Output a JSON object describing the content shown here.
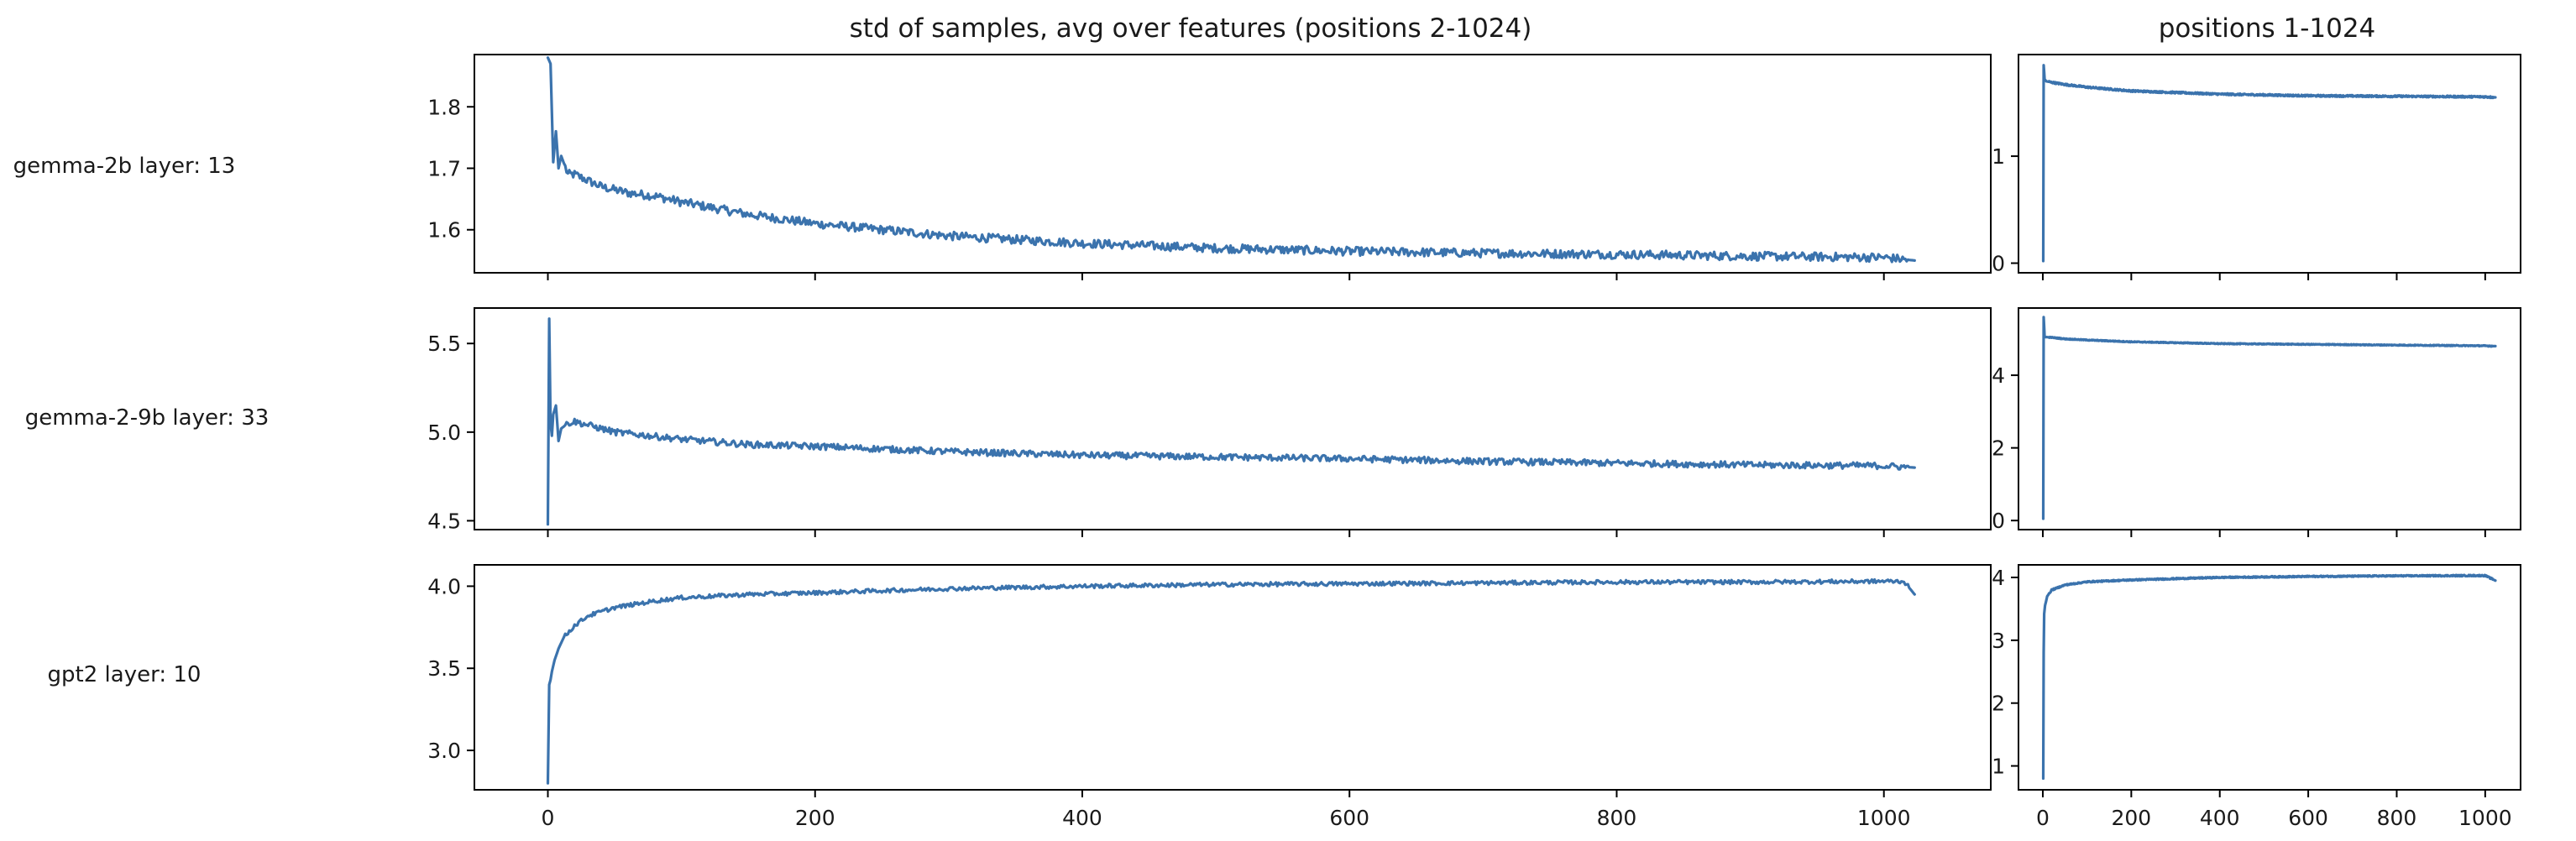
{
  "colors": {
    "line": "#3b73ad",
    "axes": "#000000"
  },
  "chart_data": {
    "type": "line",
    "grid": false,
    "column_titles": [
      "std of samples, avg over features (positions 2-1024)",
      "positions 1-1024"
    ],
    "row_labels": [
      "gemma-2b layer: 13",
      "gemma-2-9b layer: 33",
      "gpt2 layer: 10"
    ],
    "x_ticks_main": [
      0,
      200,
      400,
      600,
      800,
      1000
    ],
    "x_ticks_full": [
      0,
      200,
      400,
      600,
      800,
      1000
    ],
    "panels": [
      {
        "row": 0,
        "column": 0,
        "xlim": [
          -55,
          1080
        ],
        "ylim": [
          1.53,
          1.885
        ],
        "yticks": [
          "1.8",
          "1.7",
          "1.6"
        ],
        "ytick_values": [
          1.8,
          1.7,
          1.6
        ],
        "x": [
          0,
          2,
          4,
          6,
          8,
          10,
          15,
          20,
          30,
          40,
          50,
          60,
          80,
          100,
          150,
          200,
          250,
          300,
          400,
          500,
          600,
          700,
          800,
          900,
          1000,
          1023
        ],
        "y": [
          1.88,
          1.87,
          1.71,
          1.76,
          1.7,
          1.72,
          1.69,
          1.69,
          1.68,
          1.67,
          1.665,
          1.66,
          1.655,
          1.645,
          1.625,
          1.61,
          1.6,
          1.59,
          1.578,
          1.57,
          1.565,
          1.562,
          1.56,
          1.557,
          1.555,
          1.55
        ],
        "noise": 0.007
      },
      {
        "row": 0,
        "column": 1,
        "xlim": [
          -55,
          1080
        ],
        "ylim": [
          -0.09,
          1.95
        ],
        "yticks": [
          "1",
          "0"
        ],
        "ytick_values": [
          1,
          0
        ],
        "x": [
          1,
          2,
          4,
          8,
          20,
          50,
          100,
          200,
          400,
          600,
          800,
          1000,
          1023
        ],
        "y": [
          0.02,
          1.85,
          1.72,
          1.7,
          1.69,
          1.67,
          1.645,
          1.61,
          1.58,
          1.565,
          1.56,
          1.555,
          1.55
        ],
        "noise": 0.008
      },
      {
        "row": 1,
        "column": 0,
        "xlim": [
          -55,
          1080
        ],
        "ylim": [
          4.45,
          5.7
        ],
        "yticks": [
          "5.5",
          "5.0",
          "4.5"
        ],
        "ytick_values": [
          5.5,
          5.0,
          4.5
        ],
        "x": [
          0,
          1,
          2,
          3,
          4,
          6,
          8,
          10,
          15,
          20,
          30,
          50,
          100,
          150,
          200,
          300,
          400,
          500,
          600,
          700,
          800,
          900,
          1000,
          1023
        ],
        "y": [
          4.48,
          5.64,
          5.05,
          4.98,
          5.1,
          5.15,
          4.95,
          5.02,
          5.05,
          5.06,
          5.04,
          5.0,
          4.96,
          4.93,
          4.92,
          4.89,
          4.87,
          4.86,
          4.85,
          4.835,
          4.825,
          4.815,
          4.81,
          4.8
        ],
        "noise": 0.018
      },
      {
        "row": 1,
        "column": 1,
        "xlim": [
          -55,
          1080
        ],
        "ylim": [
          -0.25,
          5.85
        ],
        "yticks": [
          "4",
          "2",
          "0"
        ],
        "ytick_values": [
          4,
          2,
          0
        ],
        "x": [
          1,
          2,
          4,
          8,
          20,
          50,
          100,
          200,
          400,
          600,
          800,
          1000,
          1023
        ],
        "y": [
          0.05,
          5.6,
          5.05,
          5.05,
          5.04,
          5.0,
          4.97,
          4.92,
          4.87,
          4.85,
          4.83,
          4.81,
          4.8
        ],
        "noise": 0.012
      },
      {
        "row": 2,
        "column": 0,
        "xlim": [
          -55,
          1080
        ],
        "ylim": [
          2.76,
          4.13
        ],
        "yticks": [
          "4.0",
          "3.5",
          "3.0"
        ],
        "ytick_values": [
          4.0,
          3.5,
          3.0
        ],
        "x": [
          0,
          1,
          2,
          3,
          5,
          8,
          12,
          20,
          30,
          50,
          80,
          100,
          150,
          200,
          300,
          400,
          500,
          600,
          700,
          800,
          900,
          1000,
          1015,
          1023
        ],
        "y": [
          2.8,
          3.4,
          3.43,
          3.48,
          3.55,
          3.62,
          3.69,
          3.76,
          3.82,
          3.87,
          3.91,
          3.93,
          3.95,
          3.96,
          3.985,
          4.0,
          4.01,
          4.015,
          4.02,
          4.025,
          4.025,
          4.03,
          4.03,
          3.95
        ],
        "noise": 0.012
      },
      {
        "row": 2,
        "column": 1,
        "xlim": [
          -55,
          1080
        ],
        "ylim": [
          0.62,
          4.2
        ],
        "yticks": [
          "4",
          "3",
          "2",
          "1"
        ],
        "ytick_values": [
          4,
          3,
          2,
          1
        ],
        "x": [
          1,
          2,
          3,
          5,
          10,
          20,
          50,
          100,
          200,
          400,
          600,
          800,
          1000,
          1023
        ],
        "y": [
          0.8,
          2.8,
          3.42,
          3.55,
          3.7,
          3.8,
          3.88,
          3.93,
          3.96,
          4.0,
          4.015,
          4.025,
          4.03,
          3.95
        ],
        "noise": 0.01
      }
    ]
  }
}
